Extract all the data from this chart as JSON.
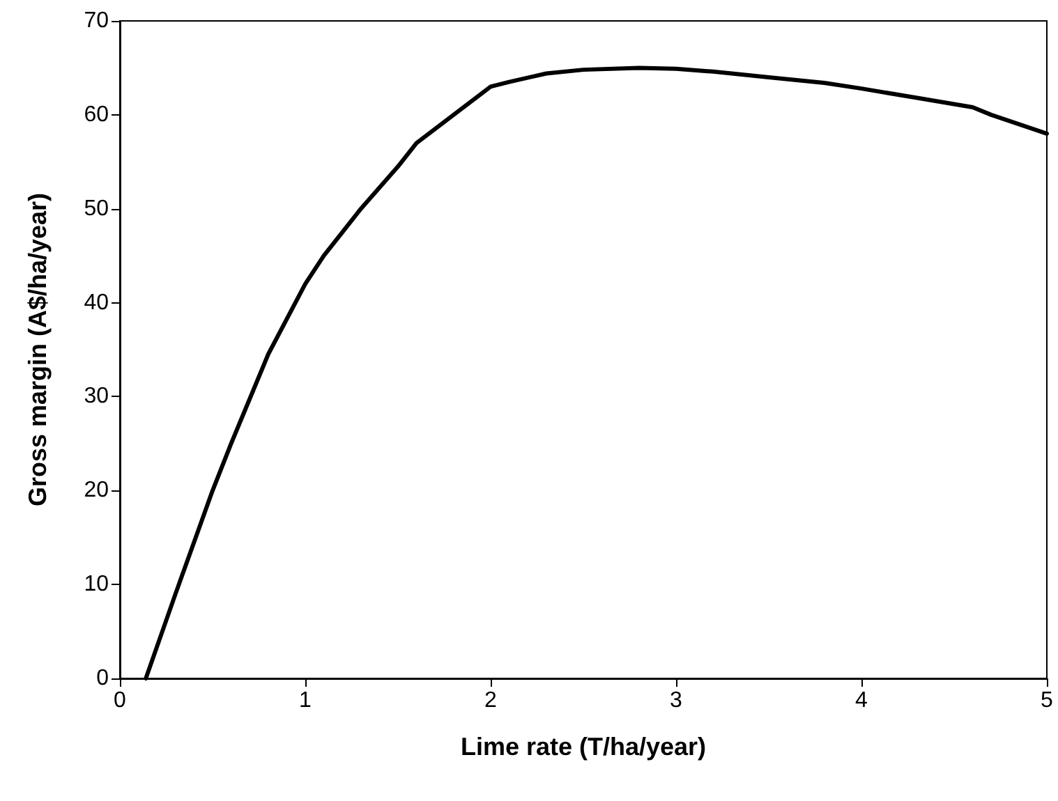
{
  "chart_data": {
    "type": "line",
    "xlabel": "Lime rate (T/ha/year)",
    "ylabel": "Gross margin (A$/ha/year)",
    "x": [
      0.14,
      0.3,
      0.5,
      0.6,
      0.8,
      1.0,
      1.1,
      1.3,
      1.5,
      1.6,
      1.8,
      2.0,
      2.1,
      2.3,
      2.5,
      2.8,
      3.0,
      3.2,
      3.5,
      3.8,
      4.0,
      4.3,
      4.6,
      4.7,
      5.0
    ],
    "series": [
      {
        "color": "#000000",
        "values": [
          0,
          9,
          20,
          25,
          34.5,
          42,
          45,
          50,
          54.5,
          57,
          60,
          63,
          63.5,
          64.4,
          64.8,
          65,
          64.9,
          64.6,
          64,
          63.4,
          62.8,
          61.8,
          60.8,
          60,
          58
        ]
      }
    ],
    "xlim": [
      0,
      5
    ],
    "xticks": [
      0,
      1,
      2,
      3,
      4,
      5
    ],
    "ylim": [
      0,
      70
    ],
    "yticks": [
      0,
      10,
      20,
      30,
      40,
      50,
      60,
      70
    ],
    "grid": false,
    "marker": "none",
    "line_style": "solid"
  }
}
